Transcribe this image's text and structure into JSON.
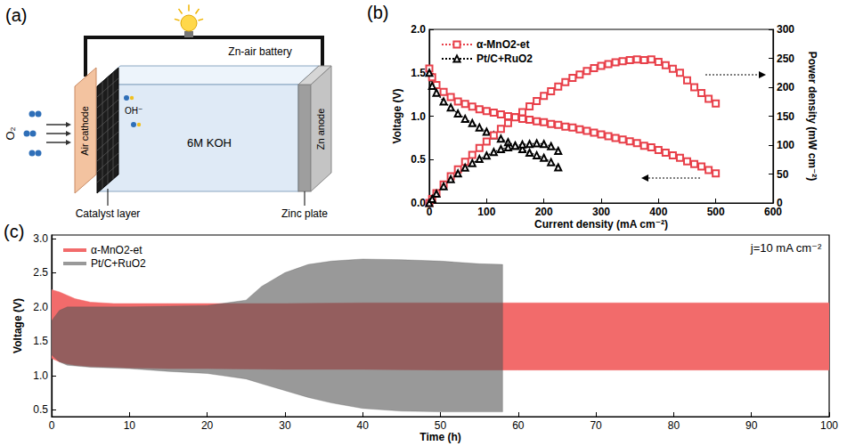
{
  "diagram": {
    "panel_label": "(a)",
    "title": "Zn-air battery",
    "gas": "O₂",
    "ion": "OH⁻",
    "cathode": "Air cathode",
    "electrolyte": "6M KOH",
    "anode": "Zn anode",
    "callouts": [
      "Catalyst layer",
      "Zinc plate"
    ]
  },
  "chart_data": [
    {
      "panel_label": "(b)",
      "type": "line",
      "x_label": "Current density (mA cm⁻²)",
      "y_label": "Voltage (V)",
      "y2_label": "Power density (mW cm⁻²)",
      "xlim": [
        0,
        600
      ],
      "xticks": [
        0,
        100,
        200,
        300,
        400,
        500,
        600
      ],
      "ylim": [
        0,
        2
      ],
      "yticks": [
        {
          "value": 0,
          "label": "0.0"
        },
        0.5,
        {
          "value": 1,
          "label": "1.0"
        },
        1.5,
        {
          "value": 2,
          "label": "2.0"
        }
      ],
      "y2lim": [
        0,
        300
      ],
      "y2ticks": [
        0,
        50,
        100,
        150,
        200,
        250,
        300
      ],
      "grid": false,
      "legend": "upper left",
      "series": [
        {
          "name": "α-MnO2-et",
          "color": "#e8404a",
          "marker": "square",
          "line_style": "dotted",
          "x": [
            0,
            5,
            12.5,
            25,
            37.5,
            50,
            62.5,
            75,
            87.5,
            100,
            112.5,
            125,
            137.5,
            150,
            162.5,
            175,
            187.5,
            200,
            212.5,
            225,
            237.5,
            250,
            262.5,
            275,
            287.5,
            300,
            312.5,
            325,
            337.5,
            350,
            362.5,
            375,
            387.5,
            400,
            412.5,
            425,
            437.5,
            450,
            462.5,
            475,
            487.5,
            500
          ],
          "values": [
            1.55,
            1.45,
            1.36,
            1.28,
            1.22,
            1.17,
            1.14,
            1.11,
            1.08,
            1.06,
            1.04,
            1.02,
            1.0,
            0.99,
            0.97,
            0.96,
            0.94,
            0.93,
            0.91,
            0.9,
            0.88,
            0.87,
            0.85,
            0.83,
            0.81,
            0.79,
            0.77,
            0.75,
            0.73,
            0.71,
            0.69,
            0.66,
            0.64,
            0.61,
            0.58,
            0.55,
            0.52,
            0.48,
            0.45,
            0.42,
            0.38,
            0.34
          ]
        },
        {
          "name": "Pt/C+RuO2",
          "color": "#000000",
          "marker": "triangle",
          "line_style": "dotted",
          "x": [
            0,
            5,
            12.5,
            25,
            37.5,
            50,
            62.5,
            75,
            87.5,
            100,
            112.5,
            125,
            137.5,
            150,
            162.5,
            175,
            187.5,
            200,
            212.5,
            225
          ],
          "values": [
            1.5,
            1.35,
            1.27,
            1.17,
            1.1,
            1.03,
            0.97,
            0.92,
            0.87,
            0.82,
            0.78,
            0.74,
            0.7,
            0.66,
            0.62,
            0.58,
            0.55,
            0.52,
            0.47,
            0.41
          ]
        },
        {
          "name": "α-MnO2-et",
          "color": "#e8404a",
          "marker": "square",
          "line_style": "dotted",
          "axis": "y2",
          "x": [
            0,
            5,
            12.5,
            25,
            37.5,
            50,
            62.5,
            75,
            87.5,
            100,
            112.5,
            125,
            137.5,
            150,
            162.5,
            175,
            187.5,
            200,
            212.5,
            225,
            237.5,
            250,
            262.5,
            275,
            287.5,
            300,
            312.5,
            325,
            337.5,
            350,
            362.5,
            375,
            387.5,
            400,
            412.5,
            425,
            437.5,
            450,
            462.5,
            475,
            487.5,
            500
          ],
          "values": [
            0,
            7,
            17,
            32,
            46,
            58,
            71,
            83,
            95,
            106,
            117,
            128,
            138,
            148,
            157,
            167,
            176,
            185,
            193,
            201,
            209,
            216,
            222,
            228,
            233,
            237,
            240,
            243,
            245,
            247,
            248,
            247,
            248,
            244,
            238,
            232,
            225,
            212,
            200,
            190,
            180,
            172
          ]
        },
        {
          "name": "Pt/C+RuO2",
          "color": "#000000",
          "marker": "triangle",
          "line_style": "dotted",
          "axis": "y2",
          "x": [
            0,
            5,
            12.5,
            25,
            37.5,
            50,
            62.5,
            75,
            87.5,
            100,
            112.5,
            125,
            137.5,
            150,
            162.5,
            175,
            187.5,
            200,
            212.5,
            225
          ],
          "values": [
            0,
            7,
            16,
            29,
            41,
            51,
            61,
            69,
            76,
            82,
            88,
            93,
            96,
            99,
            101,
            102,
            103,
            102,
            98,
            90
          ]
        }
      ]
    },
    {
      "panel_label": "(c)",
      "type": "band",
      "x_label": "Time (h)",
      "y_label": "Voltage (V)",
      "annotations": [
        "j=10 mA cm⁻²"
      ],
      "xlim": [
        0,
        100
      ],
      "xticks": [
        0,
        10,
        20,
        30,
        40,
        50,
        60,
        70,
        80,
        90,
        100
      ],
      "ylim": [
        0.4,
        3.05
      ],
      "yticks": [
        0.5,
        {
          "value": 1,
          "label": "1.0"
        },
        1.5,
        {
          "value": 2,
          "label": "2.0"
        },
        2.5,
        {
          "value": 3,
          "label": "3.0"
        }
      ],
      "grid": false,
      "legend": "upper left",
      "series": [
        {
          "name": "α-MnO2-et",
          "color": "#f26b6b",
          "line_style": "solid",
          "x": [
            0,
            1,
            2,
            3,
            5,
            8,
            10,
            15,
            20,
            30,
            40,
            50,
            60,
            70,
            80,
            90,
            100
          ],
          "values": [
            2.25,
            2.22,
            2.17,
            2.12,
            2.07,
            2.05,
            2.05,
            2.05,
            2.05,
            2.05,
            2.06,
            2.06,
            2.06,
            2.06,
            2.06,
            2.06,
            2.06
          ],
          "lower": [
            1.25,
            1.2,
            1.17,
            1.15,
            1.13,
            1.12,
            1.11,
            1.1,
            1.1,
            1.09,
            1.09,
            1.08,
            1.08,
            1.08,
            1.08,
            1.08,
            1.08
          ]
        },
        {
          "name": "Pt/C+RuO2",
          "color": "#555555",
          "line_style": "solid",
          "x": [
            0,
            1,
            2,
            5,
            10,
            15,
            20,
            25,
            27,
            30,
            33,
            36,
            40,
            45,
            50,
            55,
            58
          ],
          "values": [
            1.8,
            1.95,
            2.0,
            2.0,
            2.0,
            2.01,
            2.02,
            2.1,
            2.3,
            2.5,
            2.62,
            2.67,
            2.7,
            2.69,
            2.67,
            2.63,
            2.62
          ],
          "lower": [
            1.3,
            1.2,
            1.15,
            1.12,
            1.1,
            1.06,
            1.03,
            0.95,
            0.88,
            0.78,
            0.68,
            0.6,
            0.52,
            0.48,
            0.47,
            0.47,
            0.47
          ]
        }
      ]
    }
  ]
}
